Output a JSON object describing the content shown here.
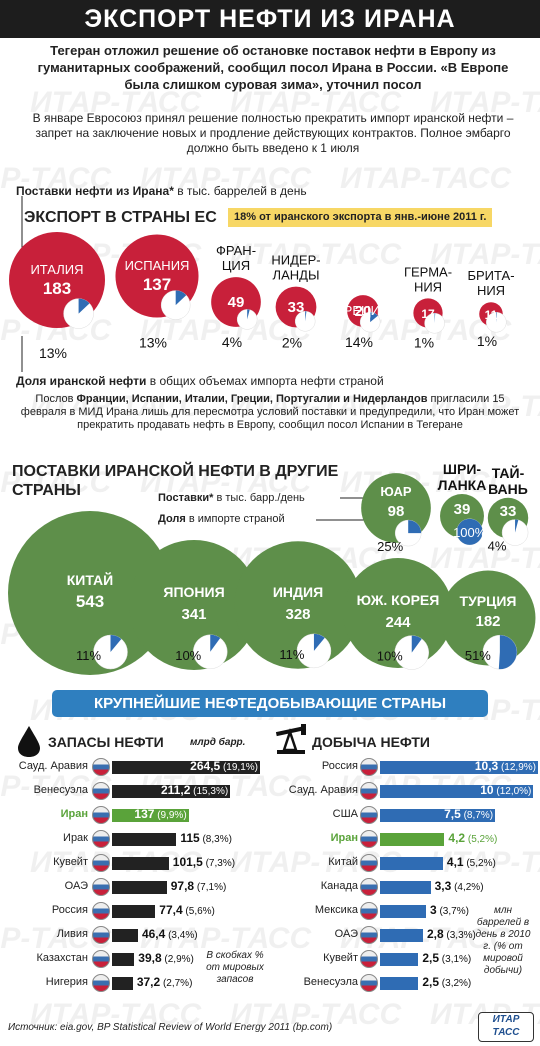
{
  "title": "ЭКСПОРТ НЕФТИ ИЗ ИРАНА",
  "watermark": "ИТАР-ТАСС",
  "lead": "Тегеран отложил решение об остановке поставок нефти в Европу из гуманитарных соображений, сообщил посол Ирана в России. «В Европе была слишком суровая зима», уточнил посол",
  "lead2": "В январе Евросоюз принял решение полностью прекратить импорт иранской нефти – запрет на заключение новых и продление действующих контрактов. Полное эмбарго должно быть введено к 1 июля",
  "supply_label_bold": "Поставки нефти из Ирана*",
  "supply_label_rest": " в тыс. баррелей в день",
  "eu_heading": "ЭКСПОРТ В СТРАНЫ ЕС",
  "eu_note": "18% от иранского экспорта в янв.-июне 2011 г.",
  "share_label_bold": "Доля иранской нефти",
  "share_label_rest": " в общих объемах импорта нефти страной",
  "eu_text_1": "Послов ",
  "eu_text_countries": "Франции, Испании, Италии, Греции, Португалии и Нидерландов",
  "eu_text_2": " пригласили 15 февраля в МИД Ирана лишь для пересмотра условий поставки и предупредили, что Иран может прекратить продавать нефть в Европу, сообщил посол Испании в Тегеране",
  "other_heading": "ПОСТАВКИ ИРАНСКОЙ НЕФТИ В ДРУГИЕ СТРАНЫ",
  "other_legend_supply_bold": "Поставки*",
  "other_legend_supply_rest": " в тыс. барр./день",
  "other_legend_share_bold": "Доля",
  "other_legend_share_rest": " в импорте страной",
  "producers_heading": "КРУПНЕЙШИЕ НЕФТЕДОБЫВАЮЩИЕ СТРАНЫ",
  "reserves_heading": "ЗАПАСЫ НЕФТИ",
  "reserves_unit": "млрд барр.",
  "reserves_note": "В скобках % от мировых запасов",
  "production_heading": "ДОБЫЧА НЕФТИ",
  "production_note": "млн баррелей в день в 2010 г. (% от мировой добычи)",
  "source": "Источник: eia.gov, BP Statistical Review of World Energy 2011 (bp.com)",
  "logo": "ИТАР ТАСС",
  "colors": {
    "red": "#c8203a",
    "green": "#5e8f4a",
    "blue": "#2f6cb4",
    "dark": "#1d1d1d",
    "highlight": "#5aa33a"
  },
  "chart_data": [
    {
      "type": "bubble",
      "title": "ЭКСПОРТ В СТРАНЫ ЕС",
      "categories": [
        "ИТАЛИЯ",
        "ИСПАНИЯ",
        "ФРАН-\nЦИЯ",
        "НИДЕР-\nЛАНДЫ",
        "ГРЕЦИЯ",
        "ГЕРМА-\nНИЯ",
        "БРИТА-\nНИЯ"
      ],
      "series": [
        {
          "name": "Поставки нефти из Ирана* в тыс. баррелей в день",
          "values": [
            183,
            137,
            49,
            33,
            20,
            17,
            11
          ]
        },
        {
          "name": "Доля иранской нефти в общих объемах импорта нефти страной",
          "values": [
            13,
            13,
            4,
            2,
            14,
            1,
            1
          ],
          "labels": [
            "13%",
            "13%",
            "4%",
            "2%",
            "14%",
            "1%",
            "1%"
          ]
        }
      ]
    },
    {
      "type": "bubble",
      "title": "ПОСТАВКИ ИРАНСКОЙ НЕФТИ В ДРУГИЕ СТРАНЫ",
      "categories": [
        "КИТАЙ",
        "ЯПОНИЯ",
        "ИНДИЯ",
        "ЮЖ. КОРЕЯ",
        "ТУРЦИЯ",
        "ЮАР",
        "ШРИ-\nЛАНКА",
        "ТАЙ-\nВАНЬ"
      ],
      "series": [
        {
          "name": "Поставки* в тыс. барр./день",
          "values": [
            543,
            341,
            328,
            244,
            182,
            98,
            39,
            33
          ]
        },
        {
          "name": "Доля в импорте страной",
          "values": [
            11,
            10,
            11,
            10,
            51,
            25,
            100,
            4
          ],
          "labels": [
            "11%",
            "10%",
            "11%",
            "10%",
            "51%",
            "25%",
            "100%",
            "4%"
          ]
        }
      ]
    },
    {
      "type": "bar",
      "title": "ЗАПАСЫ НЕФТИ",
      "ylabel": "млрд барр.",
      "categories": [
        "Сауд. Аравия",
        "Венесуэла",
        "Иран",
        "Ирак",
        "Кувейт",
        "ОАЭ",
        "Россия",
        "Ливия",
        "Казахстан",
        "Нигерия"
      ],
      "values": [
        264.5,
        211.2,
        137,
        115,
        101.5,
        97.8,
        77.4,
        46.4,
        39.8,
        37.2
      ],
      "value_labels": [
        "264,5",
        "211,2",
        "137",
        "115",
        "101,5",
        "97,8",
        "77,4",
        "46,4",
        "39,8",
        "37,2"
      ],
      "share_labels": [
        "(19,1%)",
        "(15,3%)",
        "(9,9%)",
        "(8,3%)",
        "(7,3%)",
        "(7,1%)",
        "(5,6%)",
        "(3,4%)",
        "(2,9%)",
        "(2,7%)"
      ]
    },
    {
      "type": "bar",
      "title": "ДОБЫЧА НЕФТИ",
      "ylabel": "млн баррелей в день в 2010 г.",
      "categories": [
        "Россия",
        "Сауд. Аравия",
        "США",
        "Иран",
        "Китай",
        "Канада",
        "Мексика",
        "ОАЭ",
        "Кувейт",
        "Венесуэла"
      ],
      "values": [
        10.3,
        10,
        7.5,
        4.2,
        4.1,
        3.3,
        3,
        2.8,
        2.5,
        2.5
      ],
      "value_labels": [
        "10,3",
        "10",
        "7,5",
        "4,2",
        "4,1",
        "3,3",
        "3",
        "2,8",
        "2,5",
        "2,5"
      ],
      "share_labels": [
        "(12,9%)",
        "(12,0%)",
        "(8,7%)",
        "(5,2%)",
        "(5,2%)",
        "(4,2%)",
        "(3,7%)",
        "(3,3%)",
        "(3,1%)",
        "(3,2%)"
      ]
    }
  ]
}
